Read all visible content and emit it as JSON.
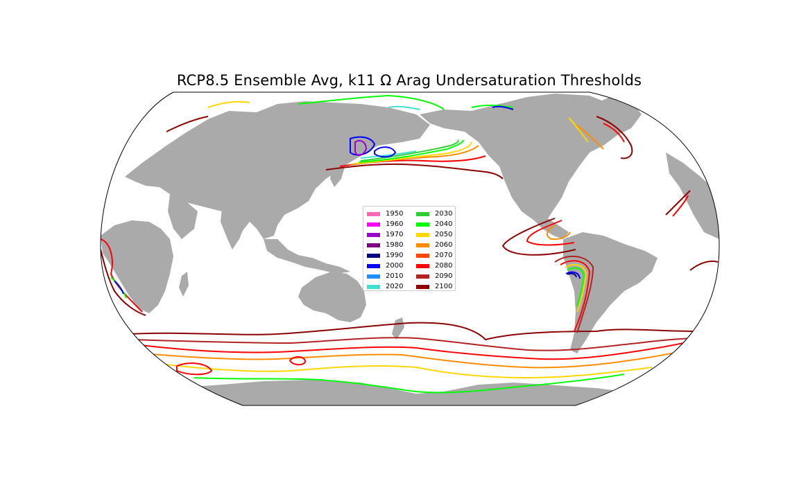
{
  "title": "RCP8.5 Ensemble Avg, k11 Ω Arag Undersaturation Thresholds",
  "colors": {
    "land": "#aaaaaa",
    "ocean": "#ffffff",
    "outline": "#000000"
  },
  "legend": {
    "items": [
      {
        "label": "1950",
        "color": "#ff69b4"
      },
      {
        "label": "1960",
        "color": "#ff00ff"
      },
      {
        "label": "1970",
        "color": "#9900cc"
      },
      {
        "label": "1980",
        "color": "#800080"
      },
      {
        "label": "1990",
        "color": "#000080"
      },
      {
        "label": "2000",
        "color": "#0000ff"
      },
      {
        "label": "2010",
        "color": "#1e90ff"
      },
      {
        "label": "2020",
        "color": "#40e0d0"
      },
      {
        "label": "2030",
        "color": "#32cd32"
      },
      {
        "label": "2040",
        "color": "#00ff00"
      },
      {
        "label": "2050",
        "color": "#ffd700"
      },
      {
        "label": "2060",
        "color": "#ff8c00"
      },
      {
        "label": "2070",
        "color": "#ff4500"
      },
      {
        "label": "2080",
        "color": "#ff0000"
      },
      {
        "label": "2090",
        "color": "#b22222"
      },
      {
        "label": "2100",
        "color": "#8b0000"
      }
    ]
  }
}
